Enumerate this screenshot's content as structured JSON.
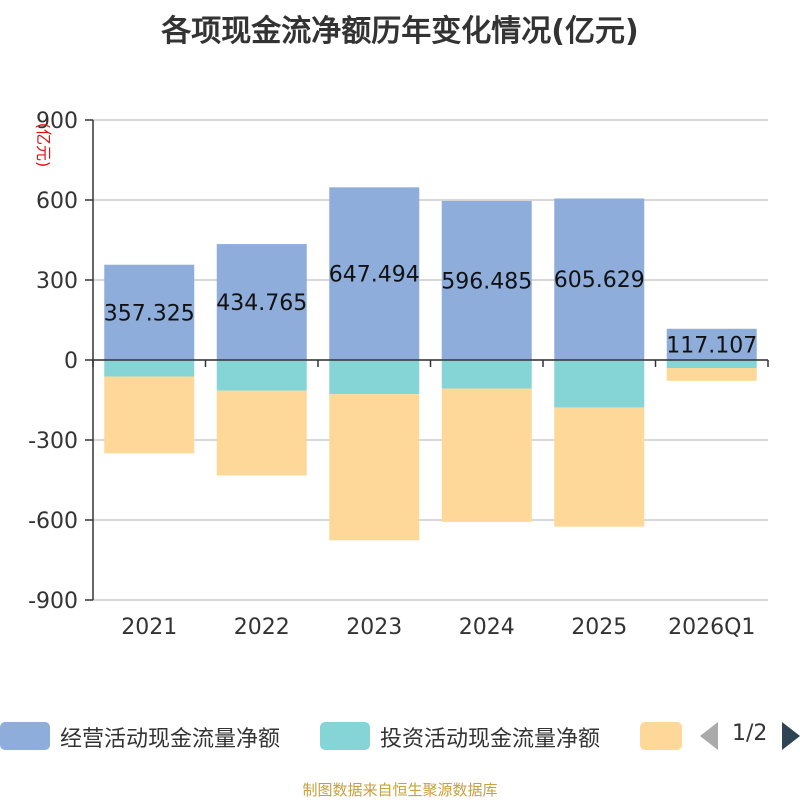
{
  "chart_data": {
    "type": "bar",
    "stacked": true,
    "title": "各项现金流净额历年变化情况(亿元)",
    "ylabel": "(亿元)",
    "categories": [
      "2021",
      "2022",
      "2023",
      "2024",
      "2025",
      "2026Q1"
    ],
    "ylim": [
      -900,
      900
    ],
    "yticks": [
      900,
      600,
      300,
      0,
      -300,
      -600,
      -900
    ],
    "grid": true,
    "legend_position": "bottom",
    "series": [
      {
        "name": "经营活动现金流量净额",
        "color": "#8eaddb",
        "values": [
          357.325,
          434.765,
          647.494,
          596.485,
          605.629,
          117.107
        ],
        "labels": [
          "357.325",
          "434.765",
          "647.494",
          "596.485",
          "605.629",
          "117.107"
        ]
      },
      {
        "name": "投资活动现金流量净额",
        "color": "#86d5d6",
        "values": [
          -62,
          -115,
          -128,
          -107,
          -178,
          -30
        ]
      },
      {
        "name": "",
        "color": "#fed898",
        "values": [
          -288,
          -318,
          -548,
          -500,
          -447,
          -48
        ]
      }
    ]
  },
  "legend_page": "1/2",
  "source": "制图数据来自恒生聚源数据库"
}
